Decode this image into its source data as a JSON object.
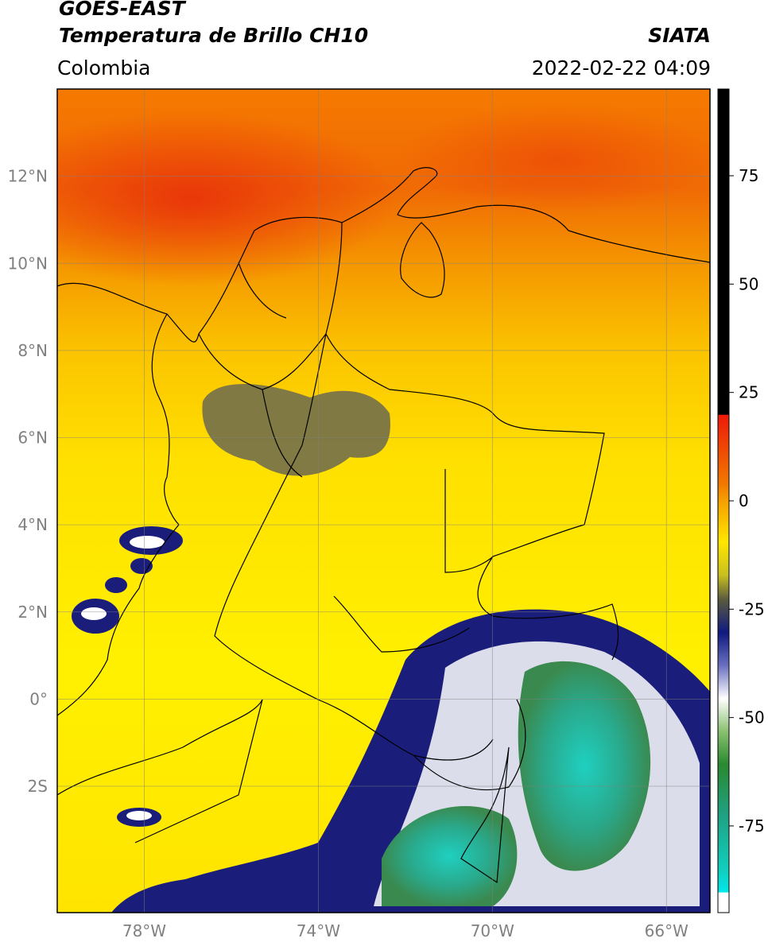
{
  "header": {
    "satellite": "GOES-EAST",
    "product": "Temperatura de Brillo CH10",
    "region": "Colombia",
    "source": "SIATA",
    "datetime": "2022-02-22 04:09"
  },
  "axes": {
    "lon_ticks": [
      {
        "value": -78,
        "label": "78°W"
      },
      {
        "value": -74,
        "label": "74°W"
      },
      {
        "value": -70,
        "label": "70°W"
      },
      {
        "value": -66,
        "label": "66°W"
      }
    ],
    "lat_ticks": [
      {
        "value": 12,
        "label": "12°N"
      },
      {
        "value": 10,
        "label": "10°N"
      },
      {
        "value": 8,
        "label": "8°N"
      },
      {
        "value": 6,
        "label": "6°N"
      },
      {
        "value": 4,
        "label": "4°N"
      },
      {
        "value": 2,
        "label": "2°N"
      },
      {
        "value": 0,
        "label": "0°"
      },
      {
        "value": -2,
        "label": "2S"
      }
    ],
    "lon_range": [
      -80,
      -65
    ],
    "lat_range": [
      -4.9,
      14
    ],
    "grid": true
  },
  "colorbar": {
    "range": [
      -95,
      95
    ],
    "ticks": [
      {
        "value": 75,
        "label": "75"
      },
      {
        "value": 50,
        "label": "50"
      },
      {
        "value": 25,
        "label": "25"
      },
      {
        "value": 0,
        "label": "0"
      },
      {
        "value": -25,
        "label": "-25"
      },
      {
        "value": -50,
        "label": "-50"
      },
      {
        "value": -75,
        "label": "-75"
      }
    ],
    "colors": {
      "warm": "#000000",
      "red": "#e8200a",
      "orange": "#f08a00",
      "yellow": "#ffec00",
      "olive": "#6e6e3a",
      "navy": "#1a1e7a",
      "white": "#ffffff",
      "green": "#2e8a3a",
      "teal": "#17c0b0",
      "cyan": "#00e0e0"
    }
  }
}
